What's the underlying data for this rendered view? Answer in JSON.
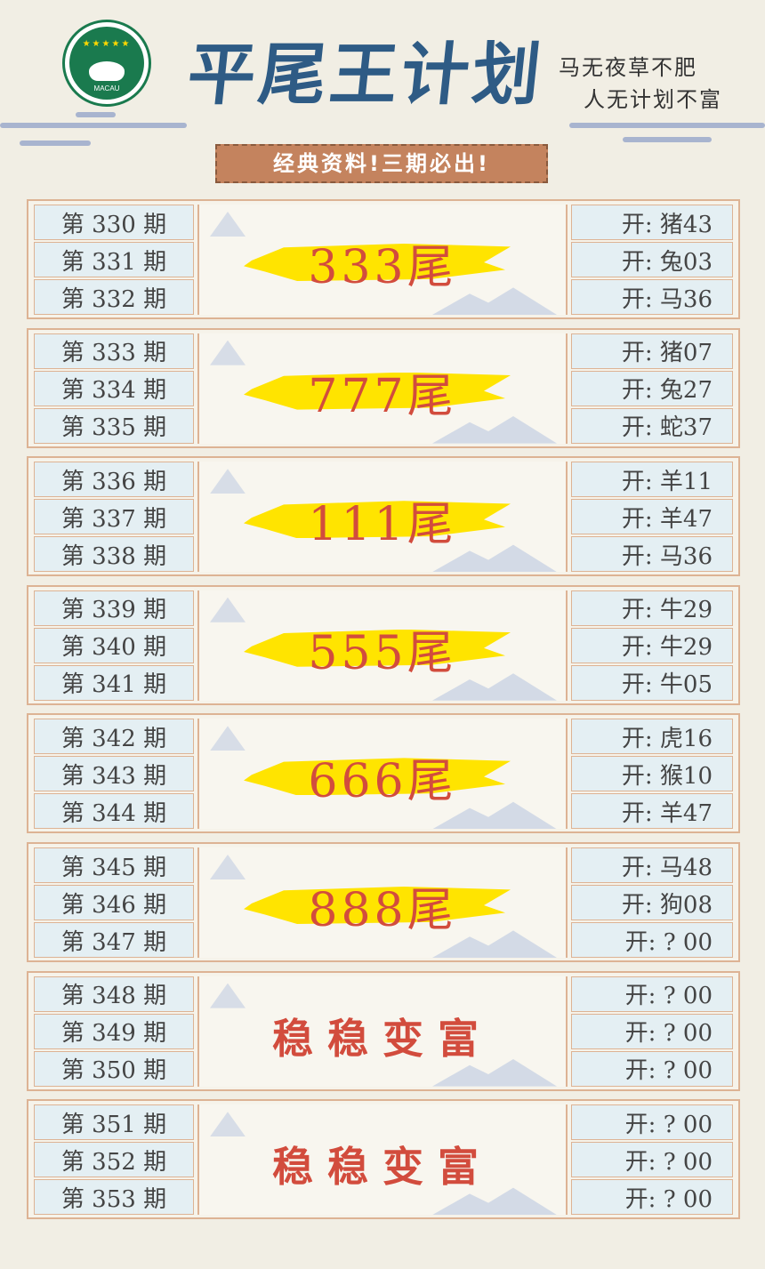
{
  "header": {
    "emblem_text": "MACAU",
    "title": "平尾王计划",
    "slogan_1": "马无夜草不肥",
    "slogan_2": "人无计划不富",
    "banner": "经典资料!三期必出!"
  },
  "colors": {
    "title": "#2e5b85",
    "prediction": "#d24c3d",
    "highlight": "#ffe400",
    "banner": "#c4835e",
    "cell": "#e4eff3",
    "border": "#ddb394"
  },
  "blocks": [
    {
      "periods": [
        "第 330 期",
        "第 331 期",
        "第 332 期"
      ],
      "prediction": "333尾",
      "results": [
        "开: 猪43",
        "开: 兔03",
        "开: 马36"
      ]
    },
    {
      "periods": [
        "第 333 期",
        "第 334 期",
        "第 335 期"
      ],
      "prediction": "777尾",
      "results": [
        "开: 猪07",
        "开: 兔27",
        "开: 蛇37"
      ]
    },
    {
      "periods": [
        "第 336 期",
        "第 337 期",
        "第 338 期"
      ],
      "prediction": "111尾",
      "results": [
        "开: 羊11",
        "开: 羊47",
        "开: 马36"
      ]
    },
    {
      "periods": [
        "第 339 期",
        "第 340 期",
        "第 341 期"
      ],
      "prediction": "555尾",
      "results": [
        "开: 牛29",
        "开: 牛29",
        "开: 牛05"
      ]
    },
    {
      "periods": [
        "第 342 期",
        "第 343 期",
        "第 344 期"
      ],
      "prediction": "666尾",
      "results": [
        "开: 虎16",
        "开: 猴10",
        "开: 羊47"
      ]
    },
    {
      "periods": [
        "第 345 期",
        "第 346 期",
        "第 347 期"
      ],
      "prediction": "888尾",
      "results": [
        "开: 马48",
        "开: 狗08",
        "开: ? 00"
      ]
    },
    {
      "periods": [
        "第 348 期",
        "第 349 期",
        "第 350 期"
      ],
      "prediction": "稳稳变富",
      "results": [
        "开: ? 00",
        "开: ? 00",
        "开: ? 00"
      ]
    },
    {
      "periods": [
        "第 351 期",
        "第 352 期",
        "第 353 期"
      ],
      "prediction": "稳稳变富",
      "results": [
        "开: ? 00",
        "开: ? 00",
        "开: ? 00"
      ]
    }
  ]
}
